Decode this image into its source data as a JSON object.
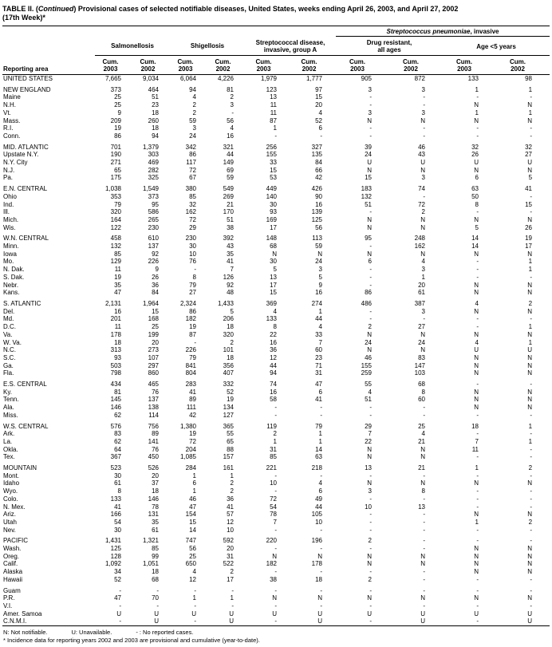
{
  "title": {
    "prefix": "TABLE II. (",
    "continued": "Continued",
    "suffix": ") Provisional cases of selected notifiable diseases, United States, weeks ending April 26, 2003, and April 27, 2002",
    "week": "(17th Week)*"
  },
  "header": {
    "reporting_area": "Reporting area",
    "spn_group": {
      "italic": "Streptococcus pneumoniae",
      "rest": ", invasive"
    },
    "groups": [
      {
        "label": "Salmonellosis"
      },
      {
        "label": "Shigellosis"
      },
      {
        "label": "Streptococcal disease,\ninvasive, group A"
      },
      {
        "label": "Drug resistant,\nall ages"
      },
      {
        "label": "Age <5 years"
      }
    ],
    "col_label": "Cum.",
    "years": [
      "2003",
      "2002",
      "2003",
      "2002",
      "2003",
      "2002",
      "2003",
      "2002",
      "2003",
      "2002"
    ]
  },
  "sections": [
    {
      "rows": [
        {
          "area": "UNITED STATES",
          "values": [
            "7,665",
            "9,034",
            "6,064",
            "4,226",
            "1,979",
            "1,777",
            "905",
            "872",
            "133",
            "98"
          ]
        }
      ]
    },
    {
      "rows": [
        {
          "area": "NEW ENGLAND",
          "values": [
            "373",
            "464",
            "94",
            "81",
            "123",
            "97",
            "3",
            "3",
            "1",
            "1"
          ]
        },
        {
          "area": "Maine",
          "values": [
            "25",
            "51",
            "4",
            "2",
            "13",
            "15",
            "-",
            "-",
            "-",
            "-"
          ]
        },
        {
          "area": "N.H.",
          "values": [
            "25",
            "23",
            "2",
            "3",
            "11",
            "20",
            "-",
            "-",
            "N",
            "N"
          ]
        },
        {
          "area": "Vt.",
          "values": [
            "9",
            "18",
            "2",
            "-",
            "11",
            "4",
            "3",
            "3",
            "1",
            "1"
          ]
        },
        {
          "area": "Mass.",
          "values": [
            "209",
            "260",
            "59",
            "56",
            "87",
            "52",
            "N",
            "N",
            "N",
            "N"
          ]
        },
        {
          "area": "R.I.",
          "values": [
            "19",
            "18",
            "3",
            "4",
            "1",
            "6",
            "-",
            "-",
            "-",
            "-"
          ]
        },
        {
          "area": "Conn.",
          "values": [
            "86",
            "94",
            "24",
            "16",
            "-",
            "-",
            "-",
            "-",
            "-",
            "-"
          ]
        }
      ]
    },
    {
      "rows": [
        {
          "area": "MID. ATLANTIC",
          "values": [
            "701",
            "1,379",
            "342",
            "321",
            "256",
            "327",
            "39",
            "46",
            "32",
            "32"
          ]
        },
        {
          "area": "Upstate N.Y.",
          "values": [
            "190",
            "303",
            "86",
            "44",
            "155",
            "135",
            "24",
            "43",
            "26",
            "27"
          ]
        },
        {
          "area": "N.Y. City",
          "values": [
            "271",
            "469",
            "117",
            "149",
            "33",
            "84",
            "U",
            "U",
            "U",
            "U"
          ]
        },
        {
          "area": "N.J.",
          "values": [
            "65",
            "282",
            "72",
            "69",
            "15",
            "66",
            "N",
            "N",
            "N",
            "N"
          ]
        },
        {
          "area": "Pa.",
          "values": [
            "175",
            "325",
            "67",
            "59",
            "53",
            "42",
            "15",
            "3",
            "6",
            "5"
          ]
        }
      ]
    },
    {
      "rows": [
        {
          "area": "E.N. CENTRAL",
          "values": [
            "1,038",
            "1,549",
            "380",
            "549",
            "449",
            "426",
            "183",
            "74",
            "63",
            "41"
          ]
        },
        {
          "area": "Ohio",
          "values": [
            "353",
            "373",
            "85",
            "269",
            "140",
            "90",
            "132",
            "-",
            "50",
            "-"
          ]
        },
        {
          "area": "Ind.",
          "values": [
            "79",
            "95",
            "32",
            "21",
            "30",
            "16",
            "51",
            "72",
            "8",
            "15"
          ]
        },
        {
          "area": "Ill.",
          "values": [
            "320",
            "586",
            "162",
            "170",
            "93",
            "139",
            "-",
            "2",
            "-",
            "-"
          ]
        },
        {
          "area": "Mich.",
          "values": [
            "164",
            "265",
            "72",
            "51",
            "169",
            "125",
            "N",
            "N",
            "N",
            "N"
          ]
        },
        {
          "area": "Wis.",
          "values": [
            "122",
            "230",
            "29",
            "38",
            "17",
            "56",
            "N",
            "N",
            "5",
            "26"
          ]
        }
      ]
    },
    {
      "rows": [
        {
          "area": "W.N. CENTRAL",
          "values": [
            "458",
            "610",
            "230",
            "392",
            "148",
            "113",
            "95",
            "248",
            "14",
            "19"
          ]
        },
        {
          "area": "Minn.",
          "values": [
            "132",
            "137",
            "30",
            "43",
            "68",
            "59",
            "-",
            "162",
            "14",
            "17"
          ]
        },
        {
          "area": "Iowa",
          "values": [
            "85",
            "92",
            "10",
            "35",
            "N",
            "N",
            "N",
            "N",
            "N",
            "N"
          ]
        },
        {
          "area": "Mo.",
          "values": [
            "129",
            "226",
            "76",
            "41",
            "30",
            "24",
            "6",
            "4",
            "-",
            "1"
          ]
        },
        {
          "area": "N. Dak.",
          "values": [
            "11",
            "9",
            "-",
            "7",
            "5",
            "3",
            "-",
            "3",
            "-",
            "1"
          ]
        },
        {
          "area": "S. Dak.",
          "values": [
            "19",
            "26",
            "8",
            "126",
            "13",
            "5",
            "-",
            "1",
            "-",
            "-"
          ]
        },
        {
          "area": "Nebr.",
          "values": [
            "35",
            "36",
            "79",
            "92",
            "17",
            "9",
            "-",
            "20",
            "N",
            "N"
          ]
        },
        {
          "area": "Kans.",
          "values": [
            "47",
            "84",
            "27",
            "48",
            "15",
            "16",
            "86",
            "61",
            "N",
            "N"
          ]
        }
      ]
    },
    {
      "rows": [
        {
          "area": "S. ATLANTIC",
          "values": [
            "2,131",
            "1,964",
            "2,324",
            "1,433",
            "369",
            "274",
            "486",
            "387",
            "4",
            "2"
          ]
        },
        {
          "area": "Del.",
          "values": [
            "16",
            "15",
            "86",
            "5",
            "4",
            "1",
            "-",
            "3",
            "N",
            "N"
          ]
        },
        {
          "area": "Md.",
          "values": [
            "201",
            "168",
            "182",
            "206",
            "133",
            "44",
            "-",
            "-",
            "-",
            "-"
          ]
        },
        {
          "area": "D.C.",
          "values": [
            "11",
            "25",
            "19",
            "18",
            "8",
            "4",
            "2",
            "27",
            "-",
            "1"
          ]
        },
        {
          "area": "Va.",
          "values": [
            "178",
            "199",
            "87",
            "320",
            "22",
            "33",
            "N",
            "N",
            "N",
            "N"
          ]
        },
        {
          "area": "W. Va.",
          "values": [
            "18",
            "20",
            "-",
            "2",
            "16",
            "7",
            "24",
            "24",
            "4",
            "1"
          ]
        },
        {
          "area": "N.C.",
          "values": [
            "313",
            "273",
            "226",
            "101",
            "36",
            "60",
            "N",
            "N",
            "U",
            "U"
          ]
        },
        {
          "area": "S.C.",
          "values": [
            "93",
            "107",
            "79",
            "18",
            "12",
            "23",
            "46",
            "83",
            "N",
            "N"
          ]
        },
        {
          "area": "Ga.",
          "values": [
            "503",
            "297",
            "841",
            "356",
            "44",
            "71",
            "155",
            "147",
            "N",
            "N"
          ]
        },
        {
          "area": "Fla.",
          "values": [
            "798",
            "860",
            "804",
            "407",
            "94",
            "31",
            "259",
            "103",
            "N",
            "N"
          ]
        }
      ]
    },
    {
      "rows": [
        {
          "area": "E.S. CENTRAL",
          "values": [
            "434",
            "465",
            "283",
            "332",
            "74",
            "47",
            "55",
            "68",
            "-",
            "-"
          ]
        },
        {
          "area": "Ky.",
          "values": [
            "81",
            "76",
            "41",
            "52",
            "16",
            "6",
            "4",
            "8",
            "N",
            "N"
          ]
        },
        {
          "area": "Tenn.",
          "values": [
            "145",
            "137",
            "89",
            "19",
            "58",
            "41",
            "51",
            "60",
            "N",
            "N"
          ]
        },
        {
          "area": "Ala.",
          "values": [
            "146",
            "138",
            "111",
            "134",
            "-",
            "-",
            "-",
            "-",
            "N",
            "N"
          ]
        },
        {
          "area": "Miss.",
          "values": [
            "62",
            "114",
            "42",
            "127",
            "-",
            "-",
            "-",
            "-",
            "-",
            "-"
          ]
        }
      ]
    },
    {
      "rows": [
        {
          "area": "W.S. CENTRAL",
          "values": [
            "576",
            "756",
            "1,380",
            "365",
            "119",
            "79",
            "29",
            "25",
            "18",
            "1"
          ]
        },
        {
          "area": "Ark.",
          "values": [
            "83",
            "89",
            "19",
            "55",
            "2",
            "1",
            "7",
            "4",
            "-",
            "-"
          ]
        },
        {
          "area": "La.",
          "values": [
            "62",
            "141",
            "72",
            "65",
            "1",
            "1",
            "22",
            "21",
            "7",
            "1"
          ]
        },
        {
          "area": "Okla.",
          "values": [
            "64",
            "76",
            "204",
            "88",
            "31",
            "14",
            "N",
            "N",
            "11",
            "-"
          ]
        },
        {
          "area": "Tex.",
          "values": [
            "367",
            "450",
            "1,085",
            "157",
            "85",
            "63",
            "N",
            "N",
            "-",
            "-"
          ]
        }
      ]
    },
    {
      "rows": [
        {
          "area": "MOUNTAIN",
          "values": [
            "523",
            "526",
            "284",
            "161",
            "221",
            "218",
            "13",
            "21",
            "1",
            "2"
          ]
        },
        {
          "area": "Mont.",
          "values": [
            "30",
            "20",
            "1",
            "1",
            "-",
            "-",
            "-",
            "-",
            "-",
            "-"
          ]
        },
        {
          "area": "Idaho",
          "values": [
            "61",
            "37",
            "6",
            "2",
            "10",
            "4",
            "N",
            "N",
            "N",
            "N"
          ]
        },
        {
          "area": "Wyo.",
          "values": [
            "8",
            "18",
            "1",
            "2",
            "-",
            "6",
            "3",
            "8",
            "-",
            "-"
          ]
        },
        {
          "area": "Colo.",
          "values": [
            "133",
            "146",
            "46",
            "36",
            "72",
            "49",
            "-",
            "-",
            "-",
            "-"
          ]
        },
        {
          "area": "N. Mex.",
          "values": [
            "41",
            "78",
            "47",
            "41",
            "54",
            "44",
            "10",
            "13",
            "-",
            "-"
          ]
        },
        {
          "area": "Ariz.",
          "values": [
            "166",
            "131",
            "154",
            "57",
            "78",
            "105",
            "-",
            "-",
            "N",
            "N"
          ]
        },
        {
          "area": "Utah",
          "values": [
            "54",
            "35",
            "15",
            "12",
            "7",
            "10",
            "-",
            "-",
            "1",
            "2"
          ]
        },
        {
          "area": "Nev.",
          "values": [
            "30",
            "61",
            "14",
            "10",
            "-",
            "-",
            "-",
            "-",
            "-",
            "-"
          ]
        }
      ]
    },
    {
      "rows": [
        {
          "area": "PACIFIC",
          "values": [
            "1,431",
            "1,321",
            "747",
            "592",
            "220",
            "196",
            "2",
            "-",
            "-",
            "-"
          ]
        },
        {
          "area": "Wash.",
          "values": [
            "125",
            "85",
            "56",
            "20",
            "-",
            "-",
            "-",
            "-",
            "N",
            "N"
          ]
        },
        {
          "area": "Oreg.",
          "values": [
            "128",
            "99",
            "25",
            "31",
            "N",
            "N",
            "N",
            "N",
            "N",
            "N"
          ]
        },
        {
          "area": "Calif.",
          "values": [
            "1,092",
            "1,051",
            "650",
            "522",
            "182",
            "178",
            "N",
            "N",
            "N",
            "N"
          ]
        },
        {
          "area": "Alaska",
          "values": [
            "34",
            "18",
            "4",
            "2",
            "-",
            "-",
            "-",
            "-",
            "N",
            "N"
          ]
        },
        {
          "area": "Hawaii",
          "values": [
            "52",
            "68",
            "12",
            "17",
            "38",
            "18",
            "2",
            "-",
            "-",
            "-"
          ]
        }
      ]
    },
    {
      "rows": [
        {
          "area": "Guam",
          "values": [
            "-",
            "-",
            "-",
            "-",
            "-",
            "-",
            "-",
            "-",
            "-",
            "-"
          ]
        },
        {
          "area": "P.R.",
          "values": [
            "47",
            "70",
            "1",
            "1",
            "N",
            "N",
            "N",
            "N",
            "N",
            "N"
          ]
        },
        {
          "area": "V.I.",
          "values": [
            "-",
            "-",
            "-",
            "-",
            "-",
            "-",
            "-",
            "-",
            "-",
            "-"
          ]
        },
        {
          "area": "Amer. Samoa",
          "values": [
            "U",
            "U",
            "U",
            "U",
            "U",
            "U",
            "U",
            "U",
            "U",
            "U"
          ]
        },
        {
          "area": "C.N.M.I.",
          "values": [
            "-",
            "U",
            "-",
            "U",
            "-",
            "U",
            "-",
            "U",
            "-",
            "U"
          ]
        }
      ]
    }
  ],
  "footnotes": {
    "n": "N: Not notifiable.",
    "u": "U: Unavailable.",
    "dash": "- : No reported cases.",
    "asterisk": "* Incidence data for reporting years 2002 and 2003 are provisional and cumulative (year-to-date)."
  }
}
